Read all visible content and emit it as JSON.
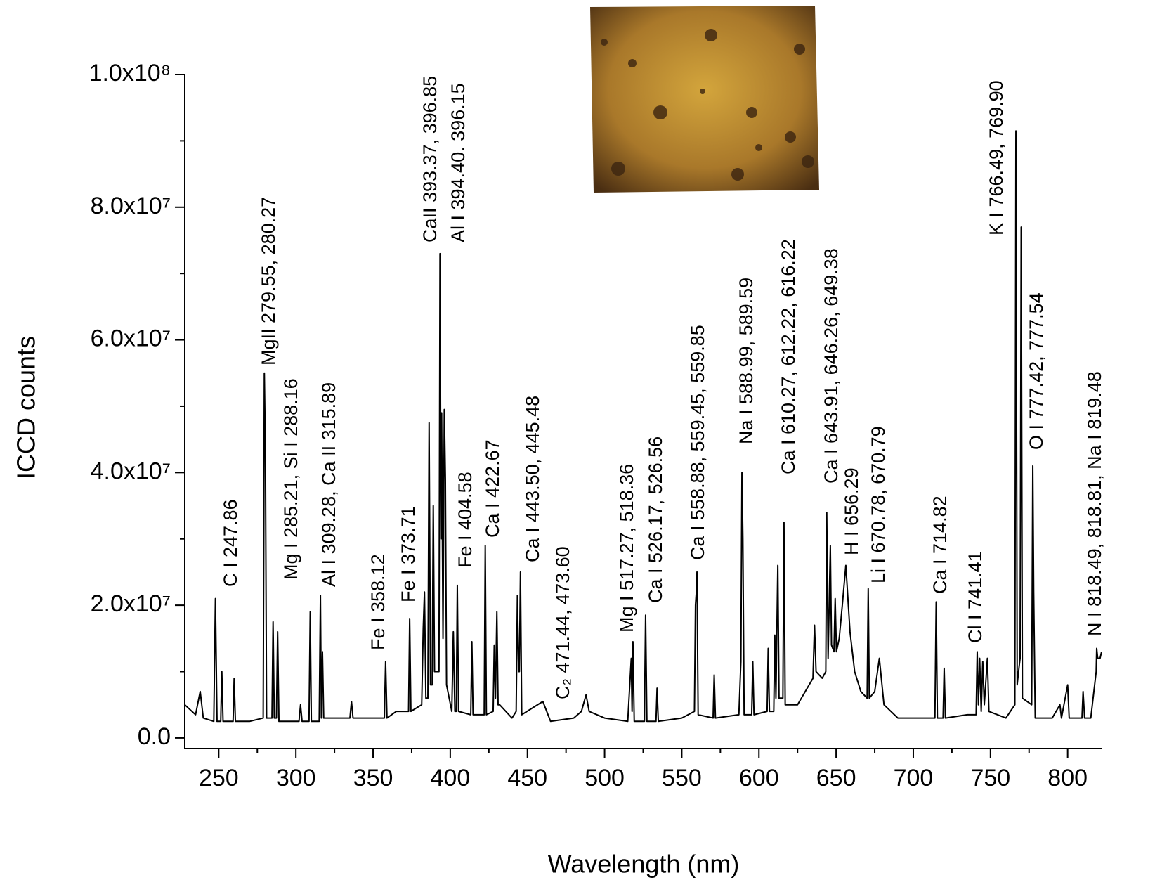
{
  "chart_data": {
    "type": "line",
    "x_label": "Wavelength (nm)",
    "y_label": "ICCD counts",
    "xlim": [
      228,
      822
    ],
    "ylim": [
      -1600000,
      100000000
    ],
    "xticks": [
      250,
      300,
      350,
      400,
      450,
      500,
      550,
      600,
      650,
      700,
      750,
      800
    ],
    "yticks": [
      {
        "value": 0,
        "label": "0.0"
      },
      {
        "value": 20000000,
        "label": "2.0x10⁷"
      },
      {
        "value": 40000000,
        "label": "4.0x10⁷"
      },
      {
        "value": 60000000,
        "label": "6.0x10⁷"
      },
      {
        "value": 80000000,
        "label": "8.0x10⁷"
      },
      {
        "value": 100000000,
        "label": "1.0x10⁸"
      }
    ],
    "grid": false,
    "x": [
      228,
      235,
      238,
      240,
      246.8,
      247.86,
      248.9,
      251.3,
      252,
      252.8,
      259.3,
      260,
      260.8,
      270,
      278.8,
      279.55,
      280.27,
      281,
      284.5,
      285.21,
      286,
      287.4,
      288.16,
      289,
      302,
      303,
      304,
      308.5,
      309.28,
      310,
      315.1,
      315.89,
      316.5,
      317.2,
      318,
      335,
      336,
      337,
      357.3,
      358.12,
      359,
      365,
      373,
      373.71,
      374.5,
      381.5,
      382.5,
      383.3,
      384.2,
      385.5,
      386.3,
      387.2,
      388.3,
      389,
      389.8,
      392.7,
      393.37,
      394,
      394.4,
      395.3,
      396.15,
      396.85,
      397.6,
      401,
      402,
      403,
      403.9,
      404.58,
      405.4,
      413.3,
      414,
      414.8,
      422,
      422.67,
      423.4,
      427.8,
      428.5,
      429.3,
      430.2,
      431,
      432,
      440,
      442.7,
      443.5,
      444.3,
      444.8,
      445.48,
      446.3,
      460,
      465,
      480,
      485,
      488,
      490,
      500,
      515,
      517.27,
      517.8,
      518.36,
      519.2,
      525.8,
      526.56,
      527.4,
      533.3,
      534,
      534.8,
      550,
      558.2,
      558.88,
      559.45,
      559.85,
      560.6,
      570.3,
      571,
      571.8,
      587,
      588.3,
      588.99,
      589.59,
      590.4,
      595.3,
      596,
      596.8,
      605.3,
      606,
      606.8,
      609.6,
      610.27,
      611,
      612.22,
      613,
      615.5,
      616.22,
      617,
      625,
      630,
      635,
      636,
      637,
      641,
      643.3,
      643.91,
      644.8,
      646.26,
      647,
      648.6,
      649.38,
      650.2,
      652,
      654,
      656.29,
      659,
      662,
      666,
      670.1,
      670.79,
      671.5,
      675,
      678,
      681,
      690,
      714,
      714.82,
      715.6,
      719.3,
      720,
      720.8,
      735,
      740.7,
      741.41,
      742.2,
      743,
      744,
      745,
      746,
      748,
      749,
      760,
      765.8,
      766.49,
      767.3,
      768.2,
      769.2,
      769.9,
      770.7,
      776.7,
      777.42,
      778,
      779,
      790,
      795,
      796,
      800,
      801,
      809.3,
      810,
      811,
      815,
      818.49,
      818.81,
      819.48,
      821,
      822
    ],
    "series": [
      {
        "color": "#000000",
        "values": [
          5000000,
          3500000,
          7000000,
          3000000,
          2500000,
          21000000,
          2500000,
          2500000,
          10000000,
          2500000,
          2500000,
          9000000,
          2500000,
          2500000,
          3000000,
          55000000,
          42500000,
          3000000,
          3000000,
          17500000,
          3000000,
          3000000,
          16000000,
          2500000,
          2500000,
          5000000,
          2500000,
          2500000,
          19000000,
          2500000,
          2500000,
          21500000,
          3000000,
          13000000,
          3000000,
          3000000,
          5500000,
          3000000,
          3000000,
          11500000,
          3000000,
          4000000,
          4000000,
          18000000,
          4000000,
          5000000,
          16500000,
          22000000,
          6000000,
          6000000,
          47500000,
          8000000,
          8000000,
          35000000,
          10000000,
          10000000,
          73000000,
          30000000,
          49000000,
          15000000,
          49500000,
          39000000,
          8000000,
          4000000,
          16000000,
          4000000,
          4000000,
          23000000,
          4000000,
          3500000,
          14500000,
          3500000,
          3500000,
          29000000,
          3500000,
          4000000,
          14000000,
          6000000,
          19000000,
          5000000,
          5000000,
          3000000,
          4000000,
          21500000,
          10000000,
          10000000,
          25000000,
          3500000,
          5500000,
          2500000,
          3000000,
          4000000,
          6500000,
          4000000,
          3000000,
          2500000,
          12000000,
          4000000,
          14500000,
          2500000,
          2500000,
          18500000,
          2500000,
          2500000,
          7500000,
          2500000,
          3000000,
          4000000,
          20000000,
          22000000,
          25000000,
          3500000,
          3000000,
          9500000,
          3000000,
          3500000,
          11500000,
          40000000,
          30000000,
          3500000,
          3500000,
          11500000,
          3500000,
          4000000,
          13500000,
          4000000,
          4000000,
          15500000,
          6000000,
          26000000,
          6000000,
          6000000,
          32500000,
          5000000,
          5000000,
          7000000,
          9000000,
          17000000,
          10000000,
          9000000,
          10000000,
          34000000,
          12000000,
          29000000,
          14000000,
          13000000,
          21000000,
          13000000,
          15000000,
          20000000,
          26000000,
          16000000,
          10000000,
          7000000,
          6000000,
          22500000,
          6000000,
          7000000,
          12000000,
          5000000,
          3000000,
          3000000,
          20500000,
          3000000,
          3000000,
          10500000,
          3000000,
          3500000,
          3500000,
          13000000,
          5000000,
          12000000,
          4000000,
          11500000,
          5000000,
          12000000,
          4000000,
          3000000,
          5000000,
          91500000,
          8000000,
          10000000,
          12000000,
          77000000,
          6000000,
          5000000,
          41000000,
          22000000,
          3000000,
          3000000,
          5000000,
          3000000,
          8000000,
          3000000,
          3000000,
          7000000,
          3000000,
          3000000,
          10000000,
          13500000,
          12000000,
          12000000,
          13000000
        ]
      }
    ],
    "annotations": [
      "C I 247.86",
      "MgII 279.55, 280.27",
      "Mg I 285.21, Si I 288.16",
      "Al I 309.28, Ca II 315.89",
      "Fe I 358.12",
      "Fe I 373.71",
      "CaII 393.37, 396.85",
      "Al I 394.40. 396.15",
      "Fe I 404.58",
      "Ca I 422.67",
      "Ca I 443.50, 445.48",
      "C₂ 471.44, 473.60",
      "Mg I 517.27, 518.36",
      "Ca I 526.17, 526.56",
      "Ca I 558.88, 559.45, 559.85",
      "Na I 588.99, 589.59",
      "Ca I 610.27, 612.22, 616.22",
      "Ca I 643.91, 646.26, 649.38",
      "H I 656.29",
      "Li I 670.78, 670.79",
      "Ca I 714.82",
      "Cl I 741.41",
      "K I 766.49, 769.90",
      "O I 777.42, 777.54",
      "N I 818.49, 818.81, Na I 819.48"
    ]
  }
}
